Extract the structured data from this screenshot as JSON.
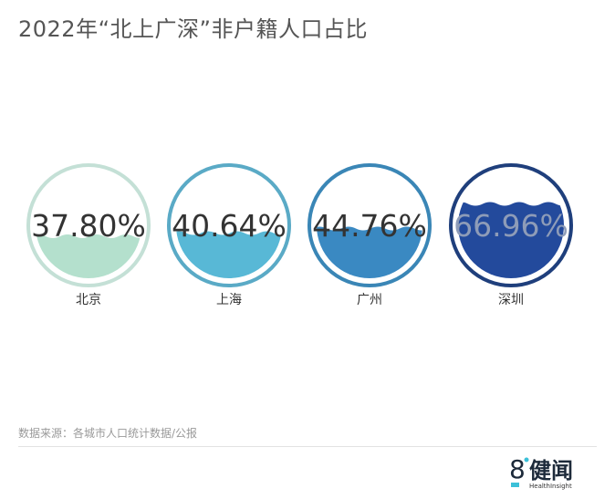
{
  "chart_data": {
    "type": "liquid-fill",
    "title": "2022年“北上广深”非户籍人口占比",
    "categories": [
      "北京",
      "上海",
      "广州",
      "深圳"
    ],
    "values": [
      37.8,
      40.64,
      44.76,
      66.96
    ],
    "labels": [
      "37.80%",
      "40.64%",
      "44.76%",
      "66.96%"
    ],
    "colors": {
      "ring": [
        "#c4e0d6",
        "#5aaac6",
        "#3a86b6",
        "#1f3f7c"
      ],
      "fill": [
        "#b4e0cd",
        "#58b8d6",
        "#3a89c2",
        "#234a9c"
      ],
      "label": [
        "#333333",
        "#333333",
        "#333333",
        "#8e9cb8"
      ]
    },
    "unit": "%"
  },
  "source": "数据来源：各城市人口统计数据/公报",
  "logo": {
    "mark": "8",
    "name": "健闻",
    "sub": "HealthInsight"
  }
}
